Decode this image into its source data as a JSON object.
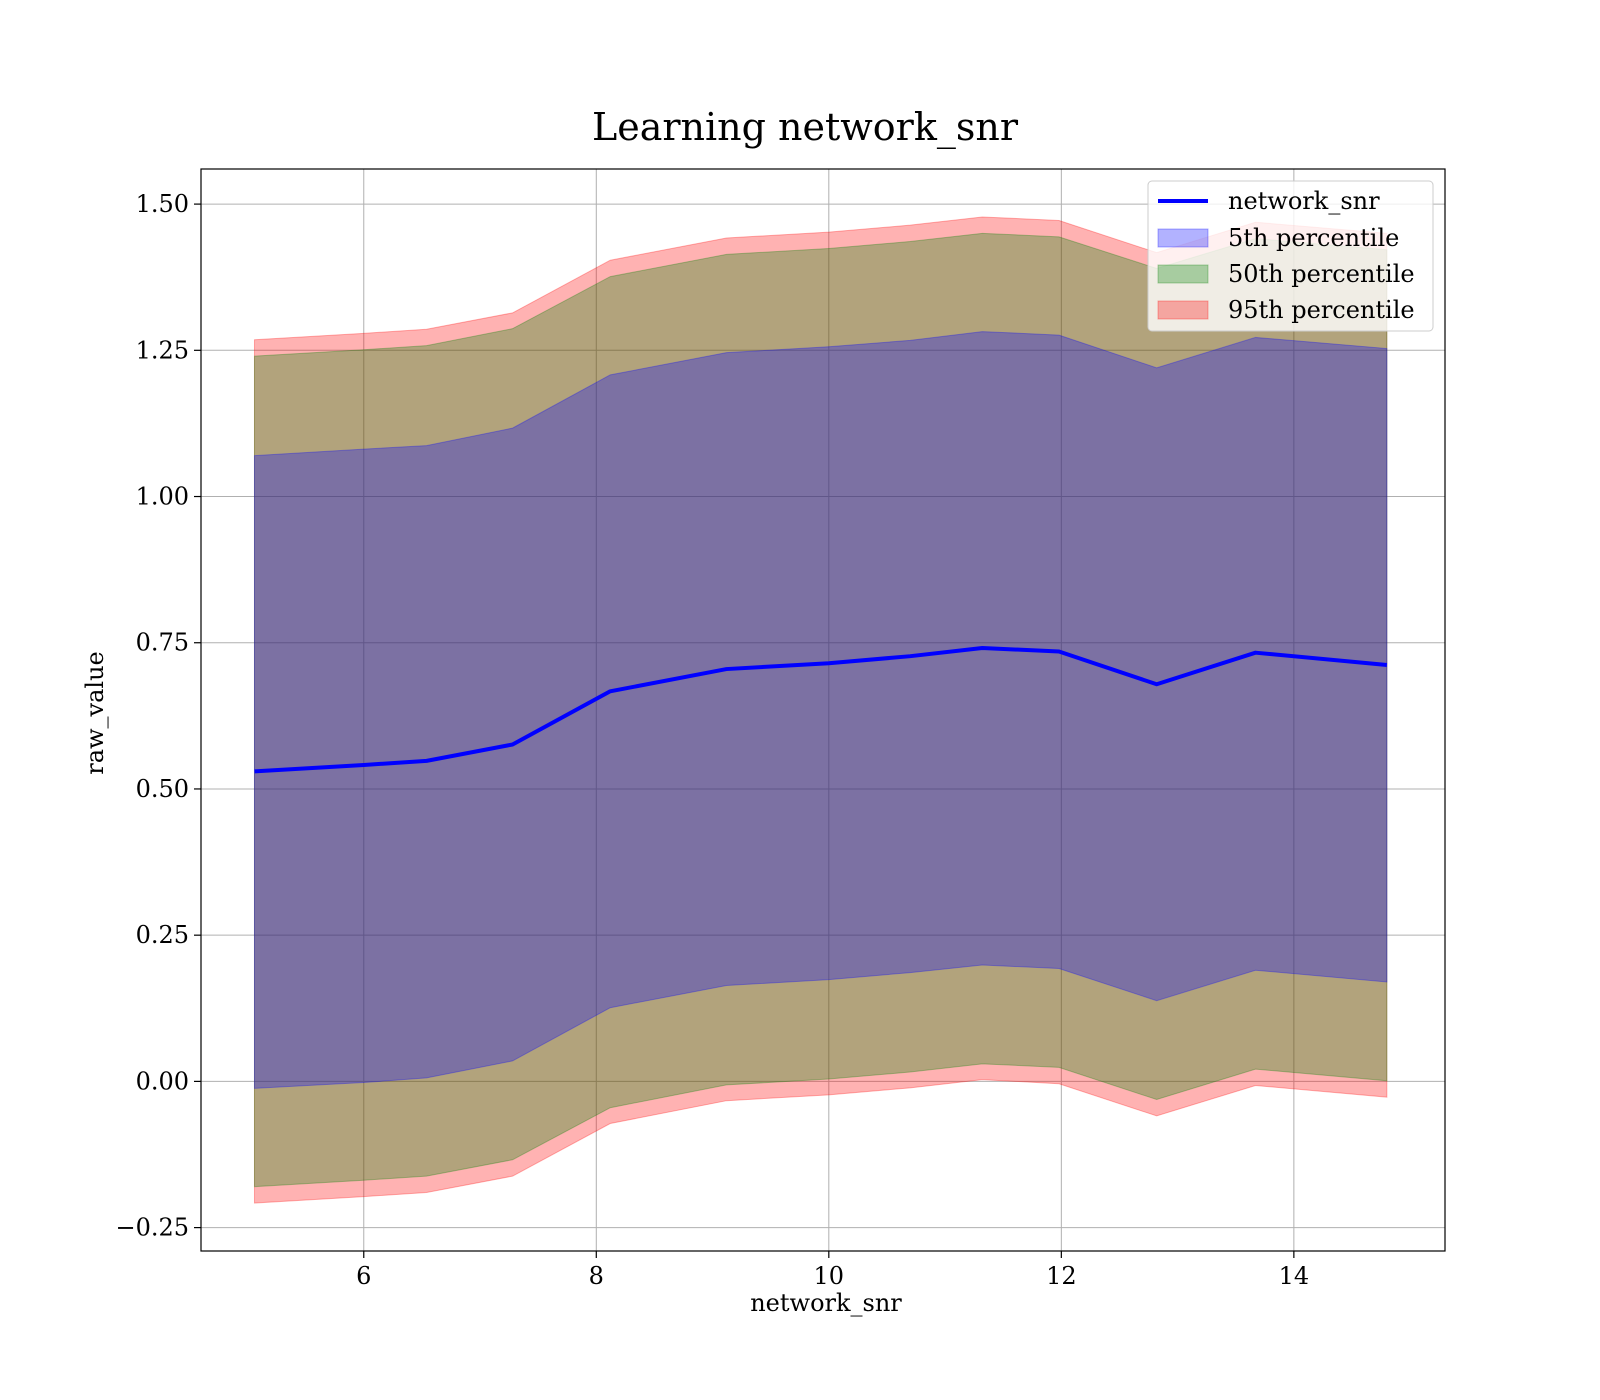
{
  "chart_data": {
    "type": "area",
    "title": "Learning network_snr",
    "xlabel": "network_snr",
    "ylabel": "raw_value",
    "xlim": [
      4.6,
      15.3
    ],
    "ylim": [
      -0.29,
      1.56
    ],
    "x_ticks": [
      6,
      8,
      10,
      12,
      14
    ],
    "x_tick_labels": [
      "6",
      "8",
      "10",
      "12",
      "14"
    ],
    "y_ticks": [
      -0.25,
      0.0,
      0.25,
      0.5,
      0.75,
      1.0,
      1.25,
      1.5
    ],
    "y_tick_labels": [
      "−0.25",
      "0.00",
      "0.25",
      "0.50",
      "0.75",
      "1.00",
      "1.25",
      "1.50"
    ],
    "grid": true,
    "legend_position": "top-right",
    "x": [
      5.06,
      6.0,
      6.54,
      7.28,
      8.12,
      9.12,
      10.0,
      10.7,
      11.32,
      11.98,
      12.82,
      13.67,
      14.8
    ],
    "line": {
      "name": "network_snr",
      "color": "#0000ff",
      "values": [
        0.53,
        0.541,
        0.548,
        0.576,
        0.667,
        0.705,
        0.715,
        0.727,
        0.741,
        0.735,
        0.679,
        0.733,
        0.712
      ]
    },
    "bands": [
      {
        "name": "5th percentile",
        "color": "#0000ff",
        "upper": [
          1.07,
          1.081,
          1.087,
          1.117,
          1.208,
          1.246,
          1.256,
          1.267,
          1.282,
          1.276,
          1.22,
          1.272,
          1.253
        ],
        "lower": [
          -0.012,
          -0.002,
          0.006,
          0.035,
          0.126,
          0.164,
          0.174,
          0.186,
          0.199,
          0.193,
          0.138,
          0.19,
          0.17
        ]
      },
      {
        "name": "50th percentile",
        "color": "#008000",
        "upper": [
          1.24,
          1.251,
          1.258,
          1.287,
          1.376,
          1.414,
          1.424,
          1.436,
          1.45,
          1.444,
          1.39,
          1.441,
          1.422
        ],
        "lower": [
          -0.18,
          -0.169,
          -0.162,
          -0.134,
          -0.045,
          -0.006,
          0.004,
          0.016,
          0.03,
          0.024,
          -0.031,
          0.021,
          0.001
        ]
      },
      {
        "name": "95th percentile",
        "color": "#ff0000",
        "upper": [
          1.268,
          1.279,
          1.286,
          1.314,
          1.404,
          1.442,
          1.452,
          1.464,
          1.478,
          1.472,
          1.417,
          1.469,
          1.45
        ],
        "lower": [
          -0.208,
          -0.197,
          -0.19,
          -0.162,
          -0.072,
          -0.033,
          -0.023,
          -0.011,
          0.003,
          -0.004,
          -0.059,
          -0.007,
          -0.027
        ]
      }
    ]
  }
}
